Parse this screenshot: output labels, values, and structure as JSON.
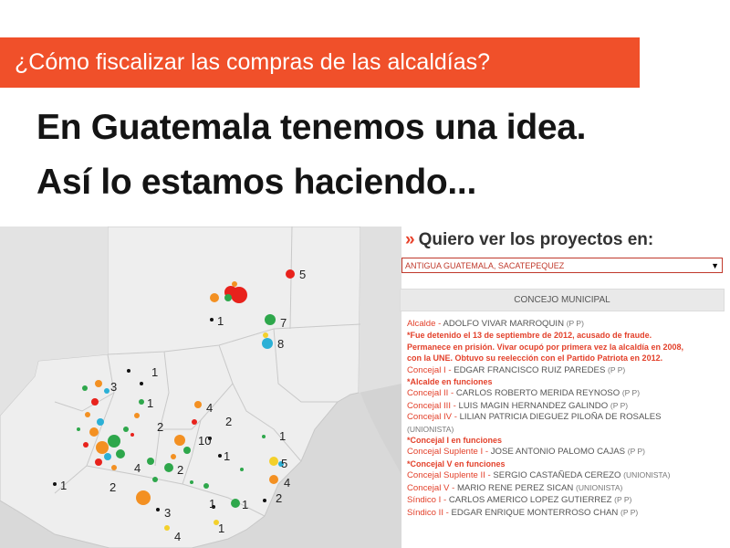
{
  "banner": {
    "text": "¿Cómo fiscalizar las compras de las alcaldías?",
    "color": "#f0502a"
  },
  "headline": {
    "line1": "En Guatemala tenemos una idea.",
    "line2": "Así lo estamos haciendo..."
  },
  "panel": {
    "prompt_arrows": "»",
    "prompt": "Quiero ver los proyectos en:",
    "selected_municipality": "ANTIGUA GUATEMALA, SACATEPEQUEZ",
    "tab": "CONCEJO MUNICIPAL"
  },
  "council": {
    "r0_role": "Alcalde",
    "r0_sep": " - ",
    "r0_name": "ADOLFO VIVAR MARROQUIN",
    "r0_party": "(P P)",
    "note1_l1": "*Fue detenido el 13 de septiembre de 2012, acusado de fraude.",
    "note1_l2": "Permanece en prisión. Vivar ocupó por primera vez la alcaldía en 2008,",
    "note1_l3": "con la UNE. Obtuvo su reelección con el Partido Patriota en 2012.",
    "r1_role": "Concejal I",
    "r1_name": "EDGAR FRANCISCO RUIZ PAREDES",
    "r1_party": "(P P)",
    "note2": "*Alcalde en funciones",
    "r2_role": "Concejal II",
    "r2_name": "CARLOS ROBERTO MERIDA REYNOSO",
    "r2_party": "(P P)",
    "r3_role": "Concejal III",
    "r3_name": "LUIS MAGIN HERNANDEZ GALINDO",
    "r3_party": "(P P)",
    "r4_role": "Concejal IV",
    "r4_name": "LILIAN PATRICIA DIEGUEZ PILOÑA  DE ROSALES",
    "r4_party": "(UNIONISTA)",
    "note3": "*Concejal I en funciones",
    "r5_role": "Concejal Suplente I",
    "r5_name": "JOSE ANTONIO PALOMO CAJAS",
    "r5_party": "(P P)",
    "note4": "*Concejal V en funciones",
    "r6_role": "Concejal Suplente II",
    "r6_name": "SERGIO CASTAÑEDA CEREZO",
    "r6_party": "(UNIONISTA)",
    "r7_role": "Concejal V",
    "r7_name": "MARIO RENE PEREZ SICAN",
    "r7_party": "(UNIONISTA)",
    "r8_role": "Síndico I",
    "r8_name": "CARLOS AMERICO LOPEZ GUTIERREZ",
    "r8_party": "(P P)",
    "r9_role": "Síndico II",
    "r9_name": "EDGAR ENRIQUE MONTERROSO  CHAN",
    "r9_party": "(P P)"
  },
  "map": {
    "labels": [
      "5",
      "1",
      "7",
      "8",
      "1",
      "3",
      "1",
      "4",
      "2",
      "2",
      "1",
      "10",
      "1",
      "5",
      "4",
      "2",
      "3",
      "1",
      "4",
      "1",
      "1",
      "2",
      "1",
      "2",
      "4"
    ],
    "colors": {
      "red": "#e8221c",
      "orange": "#f39022",
      "green": "#2ea74b",
      "blue": "#2bb0d6",
      "yellow": "#f3d02b",
      "black": "#111111"
    }
  }
}
